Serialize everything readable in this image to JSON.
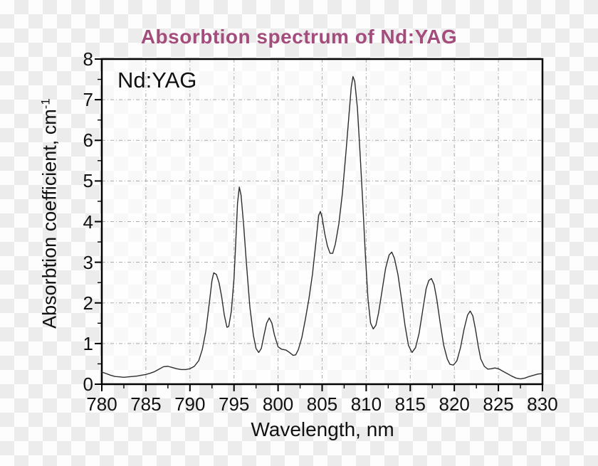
{
  "title": "Absorbtion spectrum of Nd:YAG",
  "inner_label": "Nd:YAG",
  "xlabel": "Wavelength, nm",
  "ylabel": "Absorbtion coefficient, cm",
  "ylabel_sup": "-1",
  "colors": {
    "title": "#a44d7c",
    "axis_text": "#111111",
    "axis_line": "#000000",
    "grid": "#ababab",
    "curve": "#2e2e2e",
    "checker_light": "#fdfdfd",
    "checker_dark": "#ececec"
  },
  "chart_data": {
    "type": "line",
    "title": "Absorbtion spectrum of Nd:YAG",
    "xlabel": "Wavelength, nm",
    "ylabel": "Absorbtion coefficient, cm^-1",
    "annotation": "Nd:YAG",
    "legend": "none",
    "grid": "dash-dot gray lines at every major tick",
    "xlim": [
      780,
      830
    ],
    "ylim": [
      0,
      8
    ],
    "x_major_ticks": [
      780,
      785,
      790,
      795,
      800,
      805,
      810,
      815,
      820,
      825,
      830
    ],
    "x_minor_ticks": [
      782.5,
      787.5,
      792.5,
      797.5,
      802.5,
      807.5,
      812.5,
      817.5,
      822.5,
      827.5
    ],
    "y_major_ticks": [
      0,
      1,
      2,
      3,
      4,
      5,
      6,
      7,
      8
    ],
    "y_minor_ticks": [
      0.5,
      1.5,
      2.5,
      3.5,
      4.5,
      5.5,
      6.5,
      7.5
    ],
    "notable_peaks": [
      [
        792.7,
        2.75
      ],
      [
        795.6,
        4.85
      ],
      [
        799.0,
        1.63
      ],
      [
        804.8,
        4.25
      ],
      [
        808.5,
        7.6
      ],
      [
        813.0,
        3.25
      ],
      [
        817.4,
        2.6
      ],
      [
        821.8,
        1.8
      ]
    ],
    "series": [
      {
        "name": "Nd:YAG absorption spectrum",
        "points": [
          [
            780,
            0.3
          ],
          [
            780.5,
            0.26
          ],
          [
            781,
            0.22
          ],
          [
            781.5,
            0.19
          ],
          [
            782,
            0.18
          ],
          [
            782.5,
            0.17
          ],
          [
            783,
            0.18
          ],
          [
            783.5,
            0.19
          ],
          [
            784,
            0.2
          ],
          [
            784.5,
            0.22
          ],
          [
            785,
            0.24
          ],
          [
            785.5,
            0.27
          ],
          [
            786,
            0.31
          ],
          [
            786.5,
            0.37
          ],
          [
            787,
            0.43
          ],
          [
            787.5,
            0.44
          ],
          [
            788,
            0.41
          ],
          [
            788.5,
            0.38
          ],
          [
            789,
            0.36
          ],
          [
            789.5,
            0.36
          ],
          [
            790,
            0.38
          ],
          [
            790.5,
            0.44
          ],
          [
            791,
            0.58
          ],
          [
            791.4,
            0.85
          ],
          [
            791.8,
            1.3
          ],
          [
            792.2,
            2.0
          ],
          [
            792.5,
            2.55
          ],
          [
            792.7,
            2.74
          ],
          [
            793,
            2.7
          ],
          [
            793.3,
            2.5
          ],
          [
            793.6,
            2.15
          ],
          [
            793.9,
            1.7
          ],
          [
            794.2,
            1.4
          ],
          [
            794.4,
            1.42
          ],
          [
            794.7,
            1.8
          ],
          [
            795,
            2.6
          ],
          [
            795.2,
            3.5
          ],
          [
            795.4,
            4.45
          ],
          [
            795.6,
            4.85
          ],
          [
            795.8,
            4.65
          ],
          [
            796.1,
            3.9
          ],
          [
            796.4,
            3.0
          ],
          [
            796.8,
            1.9
          ],
          [
            797.2,
            1.2
          ],
          [
            797.5,
            0.88
          ],
          [
            797.8,
            0.78
          ],
          [
            798.1,
            0.88
          ],
          [
            798.4,
            1.2
          ],
          [
            798.7,
            1.5
          ],
          [
            799,
            1.63
          ],
          [
            799.3,
            1.5
          ],
          [
            799.6,
            1.2
          ],
          [
            800,
            0.92
          ],
          [
            800.4,
            0.86
          ],
          [
            800.9,
            0.84
          ],
          [
            801.3,
            0.78
          ],
          [
            801.7,
            0.71
          ],
          [
            802,
            0.72
          ],
          [
            802.3,
            0.85
          ],
          [
            802.7,
            1.15
          ],
          [
            803.1,
            1.6
          ],
          [
            803.5,
            2.1
          ],
          [
            803.9,
            2.7
          ],
          [
            804.3,
            3.5
          ],
          [
            804.6,
            4.15
          ],
          [
            804.8,
            4.25
          ],
          [
            805,
            4.1
          ],
          [
            805.3,
            3.7
          ],
          [
            805.6,
            3.4
          ],
          [
            805.9,
            3.22
          ],
          [
            806.2,
            3.22
          ],
          [
            806.5,
            3.45
          ],
          [
            806.9,
            3.95
          ],
          [
            807.3,
            4.7
          ],
          [
            807.7,
            5.7
          ],
          [
            808,
            6.5
          ],
          [
            808.3,
            7.3
          ],
          [
            808.5,
            7.57
          ],
          [
            808.7,
            7.45
          ],
          [
            809,
            6.8
          ],
          [
            809.3,
            5.7
          ],
          [
            809.6,
            4.5
          ],
          [
            809.9,
            3.2
          ],
          [
            810.2,
            2.1
          ],
          [
            810.5,
            1.5
          ],
          [
            810.8,
            1.36
          ],
          [
            811.1,
            1.45
          ],
          [
            811.4,
            1.75
          ],
          [
            811.8,
            2.3
          ],
          [
            812.2,
            2.85
          ],
          [
            812.6,
            3.18
          ],
          [
            812.9,
            3.25
          ],
          [
            813.2,
            3.1
          ],
          [
            813.6,
            2.7
          ],
          [
            814,
            2.1
          ],
          [
            814.4,
            1.45
          ],
          [
            814.8,
            0.95
          ],
          [
            815.2,
            0.78
          ],
          [
            815.6,
            0.9
          ],
          [
            816,
            1.25
          ],
          [
            816.4,
            1.8
          ],
          [
            816.8,
            2.35
          ],
          [
            817.1,
            2.55
          ],
          [
            817.4,
            2.6
          ],
          [
            817.7,
            2.45
          ],
          [
            818,
            2.1
          ],
          [
            818.4,
            1.5
          ],
          [
            818.8,
            0.95
          ],
          [
            819.2,
            0.62
          ],
          [
            819.5,
            0.49
          ],
          [
            819.9,
            0.47
          ],
          [
            820.3,
            0.58
          ],
          [
            820.7,
            0.9
          ],
          [
            821.1,
            1.35
          ],
          [
            821.5,
            1.7
          ],
          [
            821.8,
            1.8
          ],
          [
            822.1,
            1.68
          ],
          [
            822.4,
            1.35
          ],
          [
            822.7,
            0.95
          ],
          [
            823,
            0.62
          ],
          [
            823.4,
            0.44
          ],
          [
            823.8,
            0.37
          ],
          [
            824.2,
            0.38
          ],
          [
            824.6,
            0.4
          ],
          [
            825,
            0.38
          ],
          [
            825.5,
            0.32
          ],
          [
            826,
            0.26
          ],
          [
            826.5,
            0.2
          ],
          [
            827,
            0.15
          ],
          [
            827.5,
            0.13
          ],
          [
            828,
            0.15
          ],
          [
            828.5,
            0.19
          ],
          [
            829,
            0.22
          ],
          [
            829.5,
            0.25
          ],
          [
            830,
            0.26
          ]
        ]
      }
    ]
  }
}
